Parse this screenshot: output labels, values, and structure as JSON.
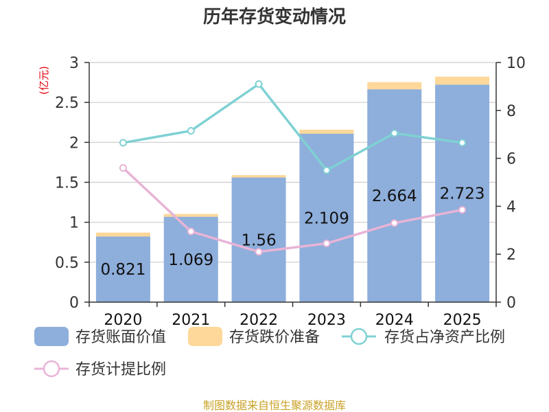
{
  "title": "历年存货变动情况",
  "left_unit": "(亿元)",
  "source": "制图数据来自恒生聚源数据库",
  "colors": {
    "book_value": "#8eaedb",
    "provision": "#fdd89a",
    "net_asset_ratio": "#7fd1d3",
    "provision_ratio": "#e8b4d6"
  },
  "chart_data": {
    "type": "bar",
    "categories": [
      "2020",
      "2021",
      "2022",
      "2023",
      "2024",
      "2025"
    ],
    "series": [
      {
        "name": "存货账面价值",
        "type": "bar",
        "axis": "left",
        "stack": "inventory",
        "values": [
          0.821,
          1.069,
          1.56,
          2.109,
          2.664,
          2.723
        ]
      },
      {
        "name": "存货跌价准备",
        "type": "bar",
        "axis": "left",
        "stack": "inventory",
        "values": [
          0.05,
          0.035,
          0.03,
          0.05,
          0.09,
          0.1
        ]
      },
      {
        "name": "存货占净资产比例",
        "type": "line",
        "axis": "right",
        "values": [
          6.65,
          7.15,
          9.1,
          5.5,
          7.05,
          6.65
        ]
      },
      {
        "name": "存货计提比例",
        "type": "line",
        "axis": "right",
        "values": [
          5.6,
          2.95,
          2.1,
          2.45,
          3.3,
          3.85
        ]
      }
    ],
    "data_labels": [
      "0.821",
      "1.069",
      "1.56",
      "2.109",
      "2.664",
      "2.723"
    ],
    "left_axis": {
      "min": 0,
      "max": 3,
      "ticks": [
        "0",
        "0.5",
        "1",
        "1.5",
        "2",
        "2.5",
        "3"
      ]
    },
    "right_axis": {
      "min": 0,
      "max": 10,
      "ticks": [
        "0",
        "2",
        "4",
        "6",
        "8",
        "10"
      ]
    },
    "grid": true,
    "legend_position": "bottom"
  }
}
